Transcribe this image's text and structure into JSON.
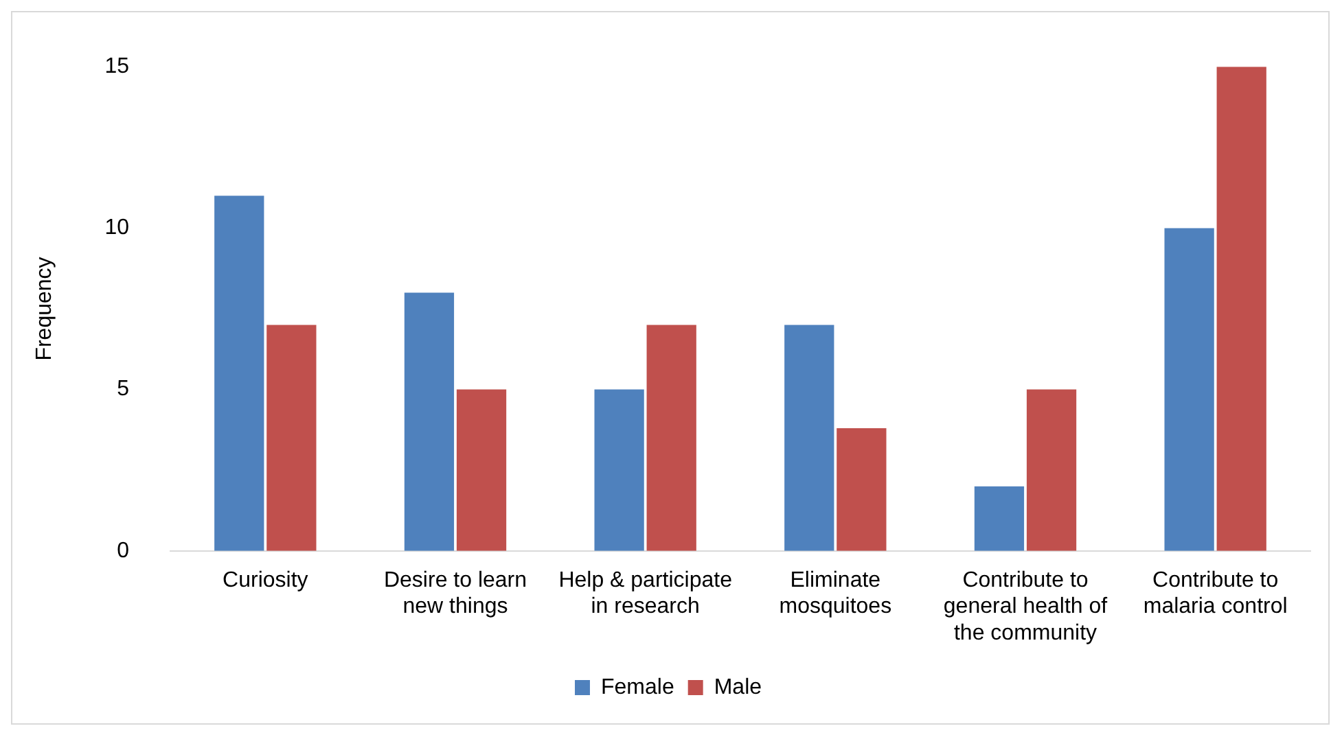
{
  "chart_data": {
    "type": "bar",
    "ylabel": "Frequency",
    "categories": [
      "Curiosity",
      "Desire to learn new things",
      "Help & participate in research",
      "Eliminate mosquitoes",
      "Contribute to general health of the community",
      "Contribute to malaria control"
    ],
    "series": [
      {
        "name": "Female",
        "color": "#4f81bd",
        "values": [
          11,
          8,
          5,
          7,
          2,
          10
        ]
      },
      {
        "name": "Male",
        "color": "#c0504d",
        "values": [
          7,
          5,
          7,
          3.8,
          5,
          15
        ]
      }
    ],
    "ylim": [
      0,
      15
    ],
    "yticks": [
      0,
      5,
      10,
      15
    ],
    "grid": false,
    "legend": "bottom"
  }
}
